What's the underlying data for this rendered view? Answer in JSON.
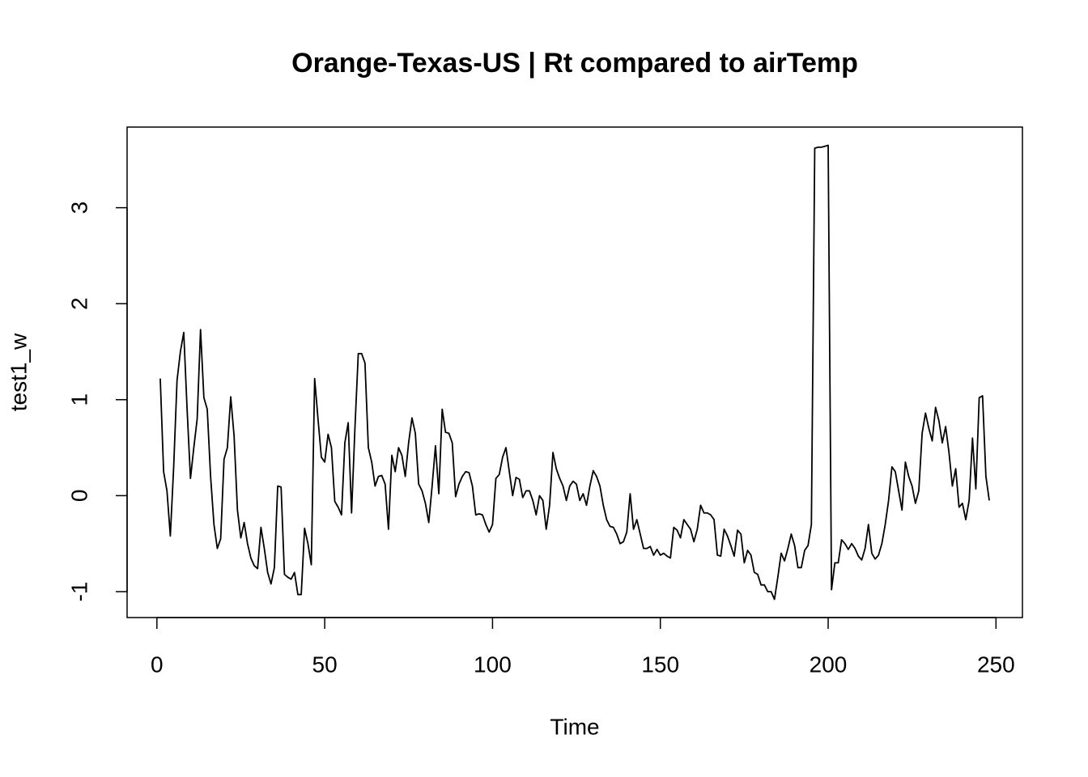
{
  "chart_data": {
    "type": "line",
    "title": "Orange-Texas-US | Rt compared to airTemp",
    "x_label": "Time",
    "y_label": "test1_w",
    "x": [
      1,
      2,
      3,
      4,
      5,
      6,
      7,
      8,
      9,
      10,
      11,
      12,
      13,
      14,
      15,
      16,
      17,
      18,
      19,
      20,
      21,
      22,
      23,
      24,
      25,
      26,
      27,
      28,
      29,
      30,
      31,
      32,
      33,
      34,
      35,
      36,
      37,
      38,
      39,
      40,
      41,
      42,
      43,
      44,
      45,
      46,
      47,
      48,
      49,
      50,
      51,
      52,
      53,
      54,
      55,
      56,
      57,
      58,
      59,
      60,
      61,
      62,
      63,
      64,
      65,
      66,
      67,
      68,
      69,
      70,
      71,
      72,
      73,
      74,
      75,
      76,
      77,
      78,
      79,
      80,
      81,
      82,
      83,
      84,
      85,
      86,
      87,
      88,
      89,
      90,
      91,
      92,
      93,
      94,
      95,
      96,
      97,
      98,
      99,
      100,
      101,
      102,
      103,
      104,
      105,
      106,
      107,
      108,
      109,
      110,
      111,
      112,
      113,
      114,
      115,
      116,
      117,
      118,
      119,
      120,
      121,
      122,
      123,
      124,
      125,
      126,
      127,
      128,
      129,
      130,
      131,
      132,
      133,
      134,
      135,
      136,
      137,
      138,
      139,
      140,
      141,
      142,
      143,
      144,
      145,
      146,
      147,
      148,
      149,
      150,
      151,
      152,
      153,
      154,
      155,
      156,
      157,
      158,
      159,
      160,
      161,
      162,
      163,
      164,
      165,
      166,
      167,
      168,
      169,
      170,
      171,
      172,
      173,
      174,
      175,
      176,
      177,
      178,
      179,
      180,
      181,
      182,
      183,
      184,
      185,
      186,
      187,
      188,
      189,
      190,
      191,
      192,
      193,
      194,
      195,
      196,
      197,
      198,
      199,
      200,
      201,
      202,
      203,
      204,
      205,
      206,
      207,
      208,
      209,
      210,
      211,
      212,
      213,
      214,
      215,
      216,
      217,
      218,
      219,
      220,
      221,
      222,
      223,
      224,
      225,
      226,
      227,
      228,
      229,
      230,
      231,
      232,
      233,
      234,
      235,
      236,
      237,
      238,
      239,
      240,
      241,
      242,
      243,
      244,
      245,
      246,
      247,
      248
    ],
    "series": [
      {
        "name": "test1_w",
        "color": "#000000",
        "values": [
          1.22,
          0.25,
          0.05,
          -0.42,
          0.3,
          1.2,
          1.5,
          1.7,
          0.9,
          0.18,
          0.5,
          0.8,
          1.73,
          1.02,
          0.9,
          0.2,
          -0.3,
          -0.55,
          -0.45,
          0.38,
          0.5,
          1.03,
          0.62,
          -0.15,
          -0.44,
          -0.28,
          -0.5,
          -0.65,
          -0.73,
          -0.76,
          -0.33,
          -0.55,
          -0.8,
          -0.92,
          -0.75,
          0.1,
          0.09,
          -0.82,
          -0.85,
          -0.87,
          -0.8,
          -1.03,
          -1.03,
          -0.34,
          -0.5,
          -0.72,
          1.22,
          0.8,
          0.4,
          0.35,
          0.64,
          0.5,
          -0.06,
          -0.12,
          -0.2,
          0.55,
          0.76,
          -0.18,
          0.7,
          1.48,
          1.48,
          1.38,
          0.5,
          0.35,
          0.1,
          0.2,
          0.21,
          0.12,
          -0.35,
          0.42,
          0.25,
          0.5,
          0.42,
          0.2,
          0.55,
          0.81,
          0.65,
          0.12,
          0.05,
          -0.08,
          -0.28,
          0.1,
          0.52,
          0.02,
          0.9,
          0.66,
          0.65,
          0.55,
          -0.01,
          0.12,
          0.2,
          0.25,
          0.24,
          0.1,
          -0.2,
          -0.19,
          -0.2,
          -0.3,
          -0.38,
          -0.3,
          0.18,
          0.22,
          0.4,
          0.5,
          0.25,
          0.0,
          0.19,
          0.17,
          -0.02,
          0.05,
          0.05,
          -0.05,
          -0.2,
          0.0,
          -0.05,
          -0.35,
          -0.1,
          0.45,
          0.28,
          0.18,
          0.1,
          -0.05,
          0.1,
          0.15,
          0.12,
          -0.05,
          0.02,
          -0.1,
          0.1,
          0.26,
          0.2,
          0.1,
          -0.1,
          -0.25,
          -0.32,
          -0.33,
          -0.4,
          -0.5,
          -0.48,
          -0.38,
          0.02,
          -0.35,
          -0.25,
          -0.4,
          -0.55,
          -0.55,
          -0.53,
          -0.62,
          -0.56,
          -0.62,
          -0.6,
          -0.63,
          -0.65,
          -0.33,
          -0.36,
          -0.44,
          -0.25,
          -0.3,
          -0.35,
          -0.48,
          -0.35,
          -0.1,
          -0.18,
          -0.18,
          -0.2,
          -0.25,
          -0.62,
          -0.63,
          -0.35,
          -0.42,
          -0.52,
          -0.63,
          -0.36,
          -0.4,
          -0.7,
          -0.57,
          -0.62,
          -0.8,
          -0.82,
          -0.93,
          -0.93,
          -1.0,
          -1.0,
          -1.08,
          -0.85,
          -0.6,
          -0.68,
          -0.55,
          -0.4,
          -0.52,
          -0.75,
          -0.75,
          -0.57,
          -0.52,
          -0.3,
          3.62,
          3.63,
          3.63,
          3.64,
          3.65,
          -0.98,
          -0.7,
          -0.7,
          -0.46,
          -0.5,
          -0.56,
          -0.5,
          -0.55,
          -0.63,
          -0.67,
          -0.55,
          -0.3,
          -0.6,
          -0.66,
          -0.62,
          -0.5,
          -0.3,
          -0.05,
          0.3,
          0.25,
          0.05,
          -0.15,
          0.35,
          0.2,
          0.1,
          -0.08,
          0.05,
          0.65,
          0.86,
          0.7,
          0.57,
          0.92,
          0.78,
          0.55,
          0.72,
          0.45,
          0.1,
          0.28,
          -0.12,
          -0.08,
          -0.25,
          -0.05,
          0.6,
          0.07,
          1.02,
          1.04,
          0.2,
          -0.05
        ]
      }
    ],
    "xlim": [
      -8.88,
      257.88
    ],
    "xticks": [
      0,
      50,
      100,
      150,
      200,
      250
    ],
    "ylim": [
      -1.27,
      3.84
    ],
    "yticks": [
      -1,
      0,
      1,
      2,
      3
    ]
  }
}
